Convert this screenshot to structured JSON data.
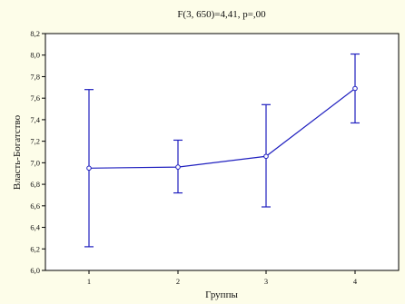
{
  "chart_data": {
    "type": "line",
    "title": "F(3, 650)=4,41, p=,00",
    "xlabel": "Группы",
    "ylabel": "Власть-Богатство",
    "categories": [
      "1",
      "2",
      "3",
      "4"
    ],
    "y_ticks": [
      "6,0",
      "6,2",
      "6,4",
      "6,6",
      "6,8",
      "7,0",
      "7,2",
      "7,4",
      "7,6",
      "7,8",
      "8,0",
      "8,2"
    ],
    "ylim": [
      6.0,
      8.2
    ],
    "grid": false,
    "legend": "none",
    "series": [
      {
        "values": [
          6.95,
          6.96,
          7.06,
          7.69
        ],
        "error_low": [
          6.22,
          6.72,
          6.59,
          7.37
        ],
        "error_high": [
          7.68,
          7.21,
          7.54,
          8.01
        ]
      }
    ],
    "colors": {
      "background": "#fdfde9",
      "plot_area": "#ffffff",
      "series": "#1f1fbf",
      "axis": "#000000"
    }
  }
}
